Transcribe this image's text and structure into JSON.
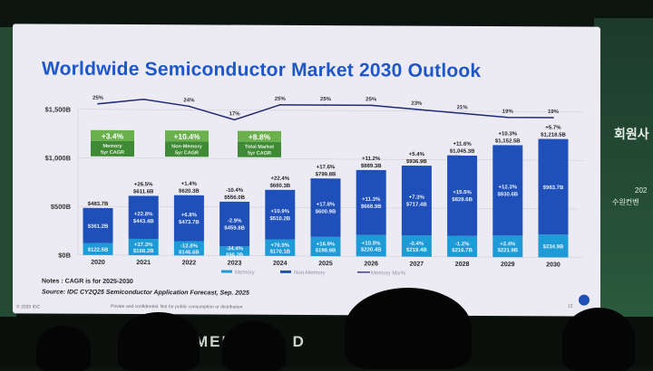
{
  "slide": {
    "title": "Worldwide Semiconductor Market 2030 Outlook",
    "notes": "Notes : CAGR is for 2025-2030",
    "source": "Source: IDC CY2Q25 Semiconductor Application Forecast, Sep. 2025",
    "copyright": "© 2025 IDC",
    "confidential": "Private and confidential. Not for public consumption or distribution",
    "page_number": "12"
  },
  "cagr_boxes": [
    {
      "value": "+3.4%",
      "label1": "Memory",
      "label2": "5yr CAGR"
    },
    {
      "value": "+10.4%",
      "label1": "Non-Memory",
      "label2": "5yr CAGR"
    },
    {
      "value": "+8.8%",
      "label1": "Total Market",
      "label2": "5yr CAGR"
    }
  ],
  "chart_data": {
    "type": "bar",
    "stacked": true,
    "title": "Worldwide Semiconductor Market 2030 Outlook",
    "categories": [
      "2020",
      "2021",
      "2022",
      "2023",
      "2024",
      "2025",
      "2026",
      "2027",
      "2028",
      "2029",
      "2030"
    ],
    "y_ticks": [
      "$0B",
      "$500B",
      "$1,000B",
      "$1,500B"
    ],
    "ylim": [
      0,
      1500
    ],
    "grid": true,
    "legend_position": "bottom",
    "series": [
      {
        "name": "Memory",
        "color": "#1e9ad6",
        "values": [
          122.5,
          168.2,
          146.6,
          96.2,
          170.1,
          198.9,
          220.4,
          219.4,
          216.7,
          221.9,
          234.9
        ],
        "labels": [
          "$122.5B",
          "$168.2B",
          "$146.6B",
          "$96.2B",
          "$170.1B",
          "$198.9B",
          "$220.4B",
          "$219.4B",
          "$216.7B",
          "$221.9B",
          "$234.9B"
        ],
        "growth": [
          "",
          "+37.3%",
          "-12.8%",
          "-34.4%",
          "+76.9%",
          "+16.9%",
          "+10.8%",
          "-0.4%",
          "-1.2%",
          "+2.4%",
          ""
        ]
      },
      {
        "name": "Non-Memory",
        "color": "#1f4fb8",
        "values": [
          361.2,
          443.4,
          473.7,
          459.8,
          510.2,
          600.9,
          668.9,
          717.4,
          828.6,
          930.6,
          983.7
        ],
        "labels": [
          "$361.2B",
          "$443.4B",
          "$473.7B",
          "$459.8B",
          "$510.2B",
          "$600.9B",
          "$668.9B",
          "$717.4B",
          "$828.6B",
          "$930.6B",
          "$983.7B"
        ],
        "growth": [
          "",
          "+22.8%",
          "+6.8%",
          "-2.9%",
          "+10.9%",
          "+17.8%",
          "+11.3%",
          "+7.3%",
          "+15.5%",
          "+12.3%",
          ""
        ]
      },
      {
        "name": "Memory Mix%",
        "type": "line",
        "color": "#1e2a78",
        "values": [
          25,
          27.5,
          24,
          17,
          25,
          25,
          25,
          23,
          21,
          19,
          19
        ],
        "labels": [
          "25%",
          "",
          "24%",
          "17%",
          "25%",
          "25%",
          "25%",
          "23%",
          "21%",
          "19%",
          "19%"
        ]
      }
    ],
    "totals": {
      "values": [
        483.7,
        611.6,
        620.3,
        556.0,
        680.3,
        799.8,
        889.3,
        936.9,
        1045.3,
        1152.5,
        1218.5
      ],
      "labels": [
        "$483.7B",
        "$611.6B",
        "$620.3B",
        "$556.0B",
        "$680.3B",
        "$799.8B",
        "$889.3B",
        "$936.9B",
        "$1,045.3B",
        "$1,152.5B",
        "$1,218.5B"
      ],
      "growth": [
        "",
        "+26.5%",
        "+1.4%",
        "-10.4%",
        "+22.4%",
        "+17.6%",
        "+11.2%",
        "+5.4%",
        "+11.6%",
        "+10.3%",
        "+5.7%"
      ]
    }
  },
  "background": {
    "banner_text": "MEMBERS D",
    "side_text_1": "회원사",
    "side_text_2": "202",
    "side_text_3": "수원컨벤"
  }
}
